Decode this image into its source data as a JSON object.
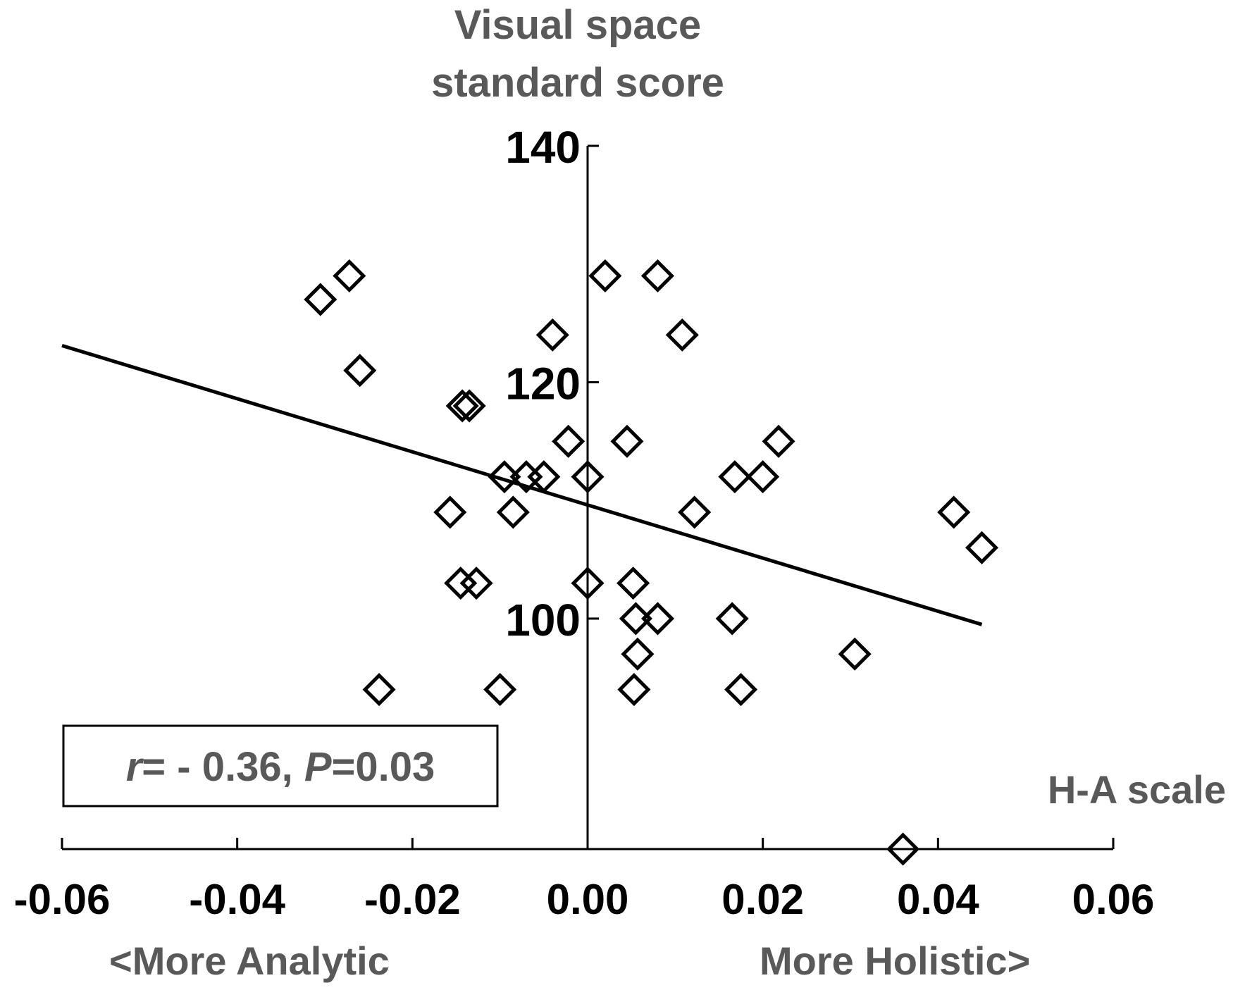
{
  "chart_data": {
    "type": "scatter",
    "ylabel_lines": [
      "Visual space",
      "standard score"
    ],
    "xlabel": "H-A scale",
    "x_direction_labels": {
      "left": "<More Analytic",
      "right": "More Holistic>"
    },
    "annotation": {
      "r_symbol": "r",
      "r_text": "= - 0.36, ",
      "p_symbol": "P",
      "p_text": "=0.03"
    },
    "xlim": [
      -0.06,
      0.06
    ],
    "ylim": [
      80.5,
      140
    ],
    "x_ticks": [
      -0.06,
      -0.04,
      -0.02,
      0.0,
      0.02,
      0.04,
      0.06
    ],
    "x_tick_labels": [
      "-0.06",
      "-0.04",
      "-0.02",
      "0.00",
      "0.02",
      "0.04",
      "0.06"
    ],
    "y_ticks": [
      100,
      120,
      140
    ],
    "y_tick_labels": [
      "100",
      "120",
      "140"
    ],
    "marker": "diamond-open",
    "points": [
      {
        "x": -0.0305,
        "y": 127
      },
      {
        "x": -0.0272,
        "y": 129
      },
      {
        "x": -0.026,
        "y": 121
      },
      {
        "x": -0.0238,
        "y": 94
      },
      {
        "x": -0.0157,
        "y": 109
      },
      {
        "x": -0.0145,
        "y": 103
      },
      {
        "x": -0.0143,
        "y": 118
      },
      {
        "x": -0.0135,
        "y": 118
      },
      {
        "x": -0.0127,
        "y": 103
      },
      {
        "x": -0.01,
        "y": 94
      },
      {
        "x": -0.0095,
        "y": 112
      },
      {
        "x": -0.0085,
        "y": 109
      },
      {
        "x": -0.007,
        "y": 112
      },
      {
        "x": -0.005,
        "y": 112
      },
      {
        "x": -0.004,
        "y": 124
      },
      {
        "x": -0.0022,
        "y": 115
      },
      {
        "x": 0.0,
        "y": 112
      },
      {
        "x": 0.0,
        "y": 103
      },
      {
        "x": 0.002,
        "y": 129
      },
      {
        "x": 0.0045,
        "y": 115
      },
      {
        "x": 0.0052,
        "y": 103
      },
      {
        "x": 0.0053,
        "y": 94
      },
      {
        "x": 0.0055,
        "y": 100
      },
      {
        "x": 0.0057,
        "y": 97
      },
      {
        "x": 0.008,
        "y": 100
      },
      {
        "x": 0.008,
        "y": 129
      },
      {
        "x": 0.0108,
        "y": 124
      },
      {
        "x": 0.0122,
        "y": 109
      },
      {
        "x": 0.0165,
        "y": 100
      },
      {
        "x": 0.0168,
        "y": 112
      },
      {
        "x": 0.0175,
        "y": 94
      },
      {
        "x": 0.02,
        "y": 112
      },
      {
        "x": 0.0218,
        "y": 115
      },
      {
        "x": 0.0305,
        "y": 97
      },
      {
        "x": 0.036,
        "y": 80.5
      },
      {
        "x": 0.0418,
        "y": 109
      },
      {
        "x": 0.045,
        "y": 106
      }
    ],
    "regression_line": {
      "x": [
        -0.06,
        0.045
      ],
      "y": [
        123.1,
        99.5
      ]
    }
  }
}
